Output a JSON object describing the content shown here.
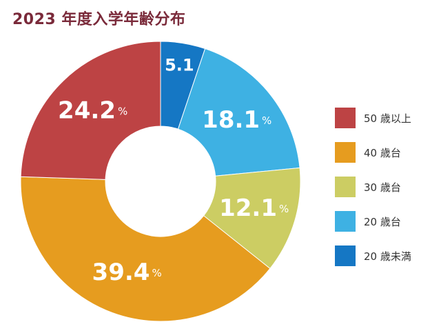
{
  "title": "2023 年度入学年齢分布",
  "chart_data": {
    "type": "pie",
    "donut": true,
    "title": "2023 年度入学年齢分布",
    "unit": "%",
    "slices": [
      {
        "label": "20 歳未満",
        "value": 5.1,
        "display": "5.1",
        "show_unit": false,
        "color": "#1577c4"
      },
      {
        "label": "20 歳台",
        "value": 18.1,
        "display": "18.1",
        "show_unit": true,
        "color": "#3eb1e3"
      },
      {
        "label": "30 歳台",
        "value": 12.1,
        "display": "12.1",
        "show_unit": true,
        "color": "#cccd63"
      },
      {
        "label": "40 歳台",
        "value": 39.4,
        "display": "39.4",
        "show_unit": true,
        "color": "#e69c1f"
      },
      {
        "label": "50 歳以上",
        "value": 24.2,
        "display": "24.2",
        "show_unit": true,
        "color": "#bd4344"
      }
    ],
    "legend": {
      "position": "right",
      "order": [
        "50 歳以上",
        "40 歳台",
        "30 歳台",
        "20 歳台",
        "20 歳未満"
      ]
    }
  }
}
